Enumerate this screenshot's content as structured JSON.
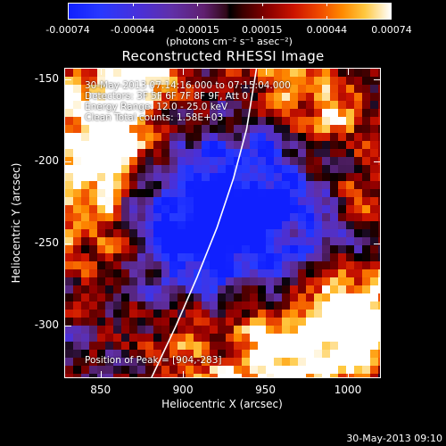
{
  "chart_data": {
    "type": "heatmap",
    "title": "Reconstructed RHESSI Image",
    "xlabel": "Heliocentric X (arcsec)",
    "ylabel": "Heliocentric Y (arcsec)",
    "xlim": [
      828,
      1020
    ],
    "ylim": [
      -332,
      -143
    ],
    "x_ticks": [
      850,
      900,
      950,
      1000
    ],
    "y_ticks": [
      -150,
      -200,
      -250,
      -300
    ],
    "colorbar": {
      "ticks": [
        "-0.00074",
        "-0.00044",
        "-0.00015",
        "0.00015",
        "0.00044",
        "0.00074"
      ],
      "units": "(photons cm⁻² s⁻¹ asec⁻²)",
      "range": [
        -0.00074,
        0.00074
      ]
    },
    "annotations": {
      "time": "30-May-2013 07:14:16.000 to 07:15:04.000",
      "detectors": "Detectors: 3F 5F 6F 7F 8F 9F, Att 0",
      "energy": "Energy Range: 12.0 - 25.0 keV",
      "clean": "Clean   Total counts: 1.58E+03",
      "peak": "Position of Peak = [904,-283]"
    },
    "peak_position": [
      904,
      -283
    ],
    "limb_curve": [
      [
        880,
        -332
      ],
      [
        895,
        -300
      ],
      [
        908,
        -270
      ],
      [
        920,
        -240
      ],
      [
        930,
        -210
      ],
      [
        938,
        -180
      ],
      [
        944,
        -143
      ]
    ],
    "grid": false
  },
  "timestamp": "30-May-2013 09:10",
  "colors": {
    "negative": "#1020ff",
    "zero": "#000000",
    "positive": "#ffffff",
    "limb": "#ffffff"
  }
}
